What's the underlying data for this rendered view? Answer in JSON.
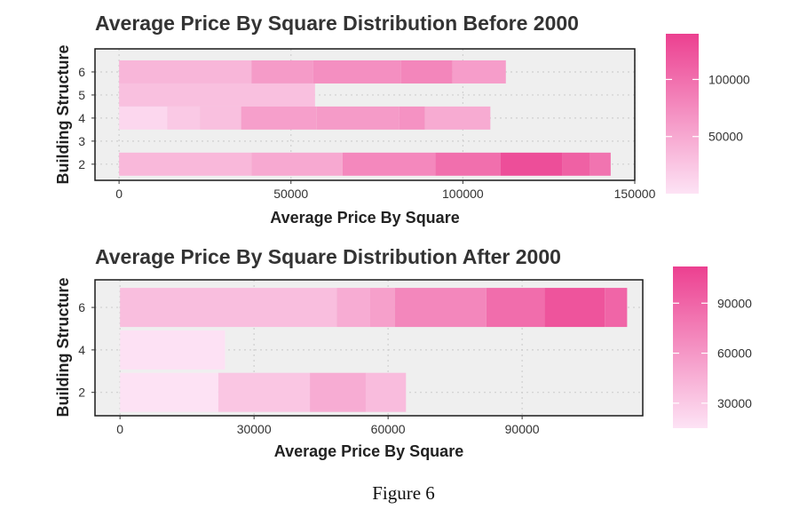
{
  "figure": {
    "caption": "Figure 6"
  },
  "chart_data": [
    {
      "type": "bar",
      "orientation": "horizontal",
      "stacked": true,
      "fill_encodes": "Average Price By Square",
      "title": "Average Price By Square Distribution Before 2000",
      "xlabel": "Average Price By Square",
      "ylabel": "Building Structure",
      "xlim": [
        -7000,
        150000
      ],
      "ylim": [
        1.3,
        7.0
      ],
      "xticks": [
        0,
        50000,
        100000,
        150000
      ],
      "xtick_labels": [
        "0",
        "50000",
        "100000",
        "150000"
      ],
      "yticks": [
        2,
        3,
        4,
        5,
        6
      ],
      "ytick_labels": [
        "2",
        "3",
        "4",
        "5",
        "6"
      ],
      "grid": true,
      "legend": {
        "position": "right",
        "min": 0,
        "max": 140000,
        "ticks": [
          50000,
          100000
        ],
        "tick_labels": [
          "50000",
          "100000"
        ],
        "low_color": "#fde3f5",
        "high_color": "#ec4090"
      },
      "bars": [
        {
          "y": 6,
          "segments": [
            {
              "value": 38500,
              "price": 39000
            },
            {
              "value": 18000,
              "price": 62000
            },
            {
              "value": 25500,
              "price": 72000
            },
            {
              "value": 15000,
              "price": 80000
            },
            {
              "value": 15500,
              "price": 60000
            }
          ]
        },
        {
          "y": 5,
          "segments": [
            {
              "value": 57000,
              "price": 30000
            }
          ]
        },
        {
          "y": 4,
          "segments": [
            {
              "value": 14000,
              "price": 10000
            },
            {
              "value": 9500,
              "price": 22000
            },
            {
              "value": 12000,
              "price": 30000
            },
            {
              "value": 22000,
              "price": 58000
            },
            {
              "value": 24000,
              "price": 62000
            },
            {
              "value": 7500,
              "price": 70000
            },
            {
              "value": 19000,
              "price": 48000
            }
          ]
        },
        {
          "y": 2,
          "segments": [
            {
              "value": 38500,
              "price": 37000
            },
            {
              "value": 26500,
              "price": 50000
            },
            {
              "value": 27000,
              "price": 78000
            },
            {
              "value": 19000,
              "price": 100000
            },
            {
              "value": 18000,
              "price": 128000
            },
            {
              "value": 8000,
              "price": 112000
            },
            {
              "value": 6000,
              "price": 95000
            }
          ]
        }
      ]
    },
    {
      "type": "bar",
      "orientation": "horizontal",
      "stacked": true,
      "fill_encodes": "Average Price By Square",
      "title": "Average Price By Square Distribution After 2000",
      "xlabel": "Average Price By Square",
      "ylabel": "Building Structure",
      "xlim": [
        -5600,
        117000
      ],
      "ylim": [
        0.9,
        7.3
      ],
      "xticks": [
        0,
        30000,
        60000,
        90000
      ],
      "xtick_labels": [
        "0",
        "30000",
        "60000",
        "90000"
      ],
      "yticks": [
        2,
        4,
        6
      ],
      "ytick_labels": [
        "2",
        "4",
        "6"
      ],
      "grid": true,
      "legend": {
        "position": "right",
        "min": 15000,
        "max": 112000,
        "ticks": [
          30000,
          60000,
          90000
        ],
        "tick_labels": [
          "30000",
          "60000",
          "90000"
        ],
        "low_color": "#fde3f5",
        "high_color": "#ec4090"
      },
      "bars": [
        {
          "y": 6,
          "segments": [
            {
              "value": 48500,
              "price": 37000
            },
            {
              "value": 7500,
              "price": 48000
            },
            {
              "value": 5500,
              "price": 55000
            },
            {
              "value": 20500,
              "price": 70000
            },
            {
              "value": 13000,
              "price": 85000
            },
            {
              "value": 13500,
              "price": 100000
            },
            {
              "value": 5000,
              "price": 90000
            }
          ]
        },
        {
          "y": 4,
          "segments": [
            {
              "value": 23500,
              "price": 16000
            }
          ]
        },
        {
          "y": 2,
          "segments": [
            {
              "value": 22000,
              "price": 15500
            },
            {
              "value": 20500,
              "price": 32000
            },
            {
              "value": 12500,
              "price": 48000
            },
            {
              "value": 9000,
              "price": 38000
            }
          ]
        }
      ]
    }
  ]
}
